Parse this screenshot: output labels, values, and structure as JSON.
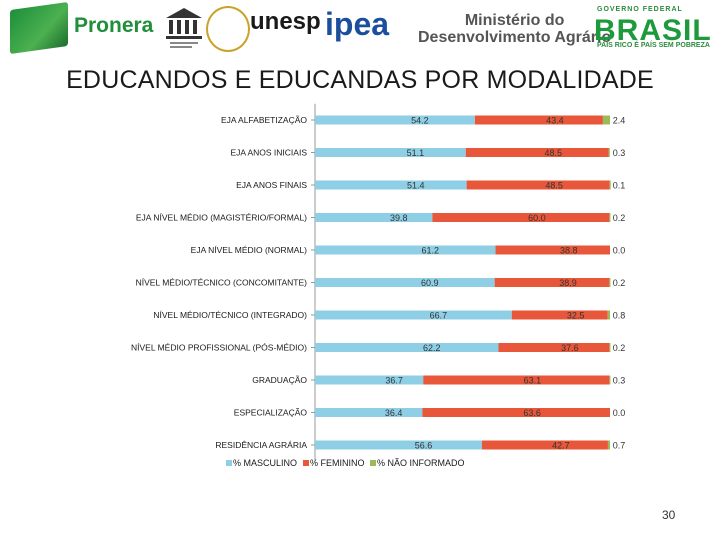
{
  "logos": {
    "pronera": "Pronera",
    "unesp": "unesp",
    "ipea": "ipea",
    "mda": [
      "Ministério do",
      "Desenvolvimento Agrário"
    ],
    "brasil_top": "GOVERNO FEDERAL",
    "brasil": "BRASIL",
    "brasil_sub": "PAÍS RICO É PAÍS SEM POBREZA"
  },
  "page_number": "30",
  "colors": {
    "masculino": "#8ecfe6",
    "feminino": "#e8573a",
    "nao_informado": "#9bbb59",
    "axis": "#999999"
  },
  "chart_data": {
    "type": "bar",
    "orientation": "horizontal",
    "stacked": true,
    "title": "EDUCANDOS E EDUCANDAS POR MODALIDADE",
    "categories": [
      "EJA ALFABETIZAÇÃO",
      "EJA ANOS INICIAIS",
      "EJA ANOS FINAIS",
      "EJA NÍVEL MÉDIO (MAGISTÉRIO/FORMAL)",
      "EJA NÍVEL MÉDIO (NORMAL)",
      "NÍVEL MÉDIO/TÉCNICO (CONCOMITANTE)",
      "NÍVEL MÉDIO/TÉCNICO (INTEGRADO)",
      "NÍVEL MÉDIO PROFISSIONAL (PÓS-MÉDIO)",
      "GRADUAÇÃO",
      "ESPECIALIZAÇÃO",
      "RESIDÊNCIA AGRÁRIA"
    ],
    "series": [
      {
        "name": "% MASCULINO",
        "values": [
          54.2,
          51.1,
          51.4,
          39.8,
          61.2,
          60.9,
          66.7,
          62.2,
          36.7,
          36.4,
          56.6
        ],
        "labels": [
          "54.2",
          "51.1",
          "51.4",
          "39.8",
          "61.2",
          "60.9",
          "66.7",
          "62.2",
          "36.7",
          "36.4",
          "56.6"
        ]
      },
      {
        "name": "% FEMININO",
        "values": [
          43.4,
          48.5,
          48.5,
          60.0,
          38.8,
          38.9,
          32.5,
          37.6,
          63.1,
          63.6,
          42.7
        ],
        "labels": [
          "43.4",
          "48.5",
          "48.5",
          "60.0",
          "38.8",
          "38.9",
          "32.5",
          "37.6",
          "63.1",
          "63.6",
          "42.7"
        ]
      },
      {
        "name": "% NÃO INFORMADO",
        "values": [
          2.4,
          0.3,
          0.1,
          0.2,
          0.0,
          0.2,
          0.8,
          0.2,
          0.3,
          0.0,
          0.7
        ],
        "labels": [
          "2.4",
          "0.3",
          "0.1",
          "0.2",
          "0.0",
          "0.2",
          "0.8",
          "0.2",
          "0.3",
          "0.0",
          "0.7"
        ]
      }
    ],
    "xlim": [
      0,
      100
    ],
    "legend_position": "bottom-left",
    "grid": false
  }
}
